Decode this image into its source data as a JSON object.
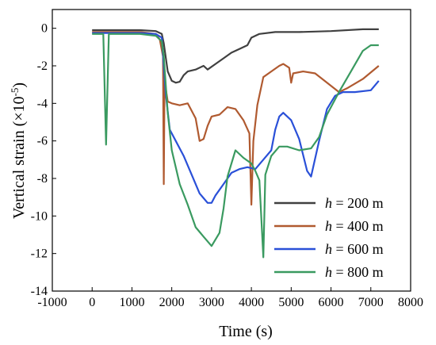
{
  "chart_data": {
    "type": "line",
    "xlabel": "Time (s)",
    "ylabel_main": "Vertical strain (×10",
    "ylabel_exp": "-5",
    "ylabel_close": ")",
    "xlim": [
      -1000,
      8000
    ],
    "ylim": [
      -14,
      1
    ],
    "xticks": [
      -1000,
      0,
      1000,
      2000,
      3000,
      4000,
      5000,
      6000,
      7000,
      8000
    ],
    "yticks": [
      0,
      -2,
      -4,
      -6,
      -8,
      -10,
      -12,
      -14
    ],
    "legend_position": "right",
    "series": [
      {
        "name": "h = 200 m",
        "name_var": "h",
        "name_rest": " = 200 m",
        "color": "#404040",
        "points": [
          [
            0,
            -0.1
          ],
          [
            600,
            -0.1
          ],
          [
            1200,
            -0.1
          ],
          [
            1600,
            -0.15
          ],
          [
            1750,
            -0.3
          ],
          [
            1800,
            -0.8
          ],
          [
            1900,
            -2.3
          ],
          [
            2000,
            -2.8
          ],
          [
            2100,
            -2.9
          ],
          [
            2200,
            -2.85
          ],
          [
            2300,
            -2.5
          ],
          [
            2400,
            -2.3
          ],
          [
            2600,
            -2.2
          ],
          [
            2800,
            -2.0
          ],
          [
            2900,
            -2.2
          ],
          [
            3100,
            -1.9
          ],
          [
            3300,
            -1.6
          ],
          [
            3500,
            -1.3
          ],
          [
            3700,
            -1.1
          ],
          [
            3900,
            -0.9
          ],
          [
            4000,
            -0.5
          ],
          [
            4200,
            -0.3
          ],
          [
            4600,
            -0.2
          ],
          [
            5200,
            -0.2
          ],
          [
            6000,
            -0.15
          ],
          [
            6800,
            -0.05
          ],
          [
            7200,
            -0.05
          ]
        ]
      },
      {
        "name": "h = 400 m",
        "name_var": "h",
        "name_rest": " = 400 m",
        "color": "#b05a30",
        "points": [
          [
            0,
            -0.2
          ],
          [
            600,
            -0.2
          ],
          [
            1200,
            -0.2
          ],
          [
            1600,
            -0.3
          ],
          [
            1700,
            -0.6
          ],
          [
            1780,
            -1.5
          ],
          [
            1800,
            -8.3
          ],
          [
            1820,
            -2.8
          ],
          [
            1900,
            -3.9
          ],
          [
            2000,
            -4.0
          ],
          [
            2200,
            -4.1
          ],
          [
            2400,
            -4.0
          ],
          [
            2500,
            -4.4
          ],
          [
            2600,
            -4.8
          ],
          [
            2700,
            -6.0
          ],
          [
            2800,
            -5.9
          ],
          [
            2900,
            -5.2
          ],
          [
            3000,
            -4.7
          ],
          [
            3200,
            -4.6
          ],
          [
            3400,
            -4.2
          ],
          [
            3600,
            -4.3
          ],
          [
            3800,
            -4.9
          ],
          [
            3950,
            -5.6
          ],
          [
            4000,
            -9.4
          ],
          [
            4050,
            -6.0
          ],
          [
            4150,
            -4.1
          ],
          [
            4300,
            -2.6
          ],
          [
            4500,
            -2.3
          ],
          [
            4700,
            -2.0
          ],
          [
            4800,
            -1.9
          ],
          [
            4950,
            -2.1
          ],
          [
            5000,
            -2.9
          ],
          [
            5050,
            -2.4
          ],
          [
            5300,
            -2.3
          ],
          [
            5600,
            -2.4
          ],
          [
            5900,
            -2.9
          ],
          [
            6200,
            -3.4
          ],
          [
            6400,
            -3.2
          ],
          [
            6800,
            -2.7
          ],
          [
            7200,
            -2.0
          ]
        ]
      },
      {
        "name": "h = 600 m",
        "name_var": "h",
        "name_rest": " = 600 m",
        "color": "#2a50d8",
        "points": [
          [
            0,
            -0.25
          ],
          [
            600,
            -0.25
          ],
          [
            1200,
            -0.25
          ],
          [
            1600,
            -0.3
          ],
          [
            1750,
            -0.5
          ],
          [
            1850,
            -3.5
          ],
          [
            1950,
            -5.4
          ],
          [
            2100,
            -6.0
          ],
          [
            2300,
            -6.8
          ],
          [
            2500,
            -7.8
          ],
          [
            2700,
            -8.8
          ],
          [
            2900,
            -9.3
          ],
          [
            3000,
            -9.3
          ],
          [
            3100,
            -8.9
          ],
          [
            3300,
            -8.3
          ],
          [
            3500,
            -7.7
          ],
          [
            3700,
            -7.5
          ],
          [
            3900,
            -7.4
          ],
          [
            4100,
            -7.5
          ],
          [
            4300,
            -7.0
          ],
          [
            4500,
            -6.5
          ],
          [
            4600,
            -5.4
          ],
          [
            4700,
            -4.7
          ],
          [
            4800,
            -4.5
          ],
          [
            5000,
            -4.9
          ],
          [
            5200,
            -5.9
          ],
          [
            5400,
            -7.6
          ],
          [
            5500,
            -7.9
          ],
          [
            5700,
            -6.0
          ],
          [
            5900,
            -4.3
          ],
          [
            6100,
            -3.6
          ],
          [
            6300,
            -3.4
          ],
          [
            6600,
            -3.4
          ],
          [
            7000,
            -3.3
          ],
          [
            7200,
            -2.8
          ]
        ]
      },
      {
        "name": "h = 800 m",
        "name_var": "h",
        "name_rest": " = 800 m",
        "color": "#3a9a60",
        "points": [
          [
            0,
            -0.3
          ],
          [
            280,
            -0.3
          ],
          [
            350,
            -6.2
          ],
          [
            420,
            -0.3
          ],
          [
            600,
            -0.3
          ],
          [
            1200,
            -0.3
          ],
          [
            1600,
            -0.4
          ],
          [
            1750,
            -0.7
          ],
          [
            1800,
            -1.5
          ],
          [
            1900,
            -4.5
          ],
          [
            2000,
            -6.5
          ],
          [
            2200,
            -8.3
          ],
          [
            2400,
            -9.4
          ],
          [
            2600,
            -10.6
          ],
          [
            2800,
            -11.1
          ],
          [
            3000,
            -11.6
          ],
          [
            3200,
            -10.9
          ],
          [
            3300,
            -9.6
          ],
          [
            3400,
            -7.9
          ],
          [
            3600,
            -6.5
          ],
          [
            3800,
            -6.9
          ],
          [
            4000,
            -7.2
          ],
          [
            4100,
            -7.6
          ],
          [
            4200,
            -8.1
          ],
          [
            4300,
            -12.2
          ],
          [
            4350,
            -7.8
          ],
          [
            4500,
            -6.8
          ],
          [
            4700,
            -6.3
          ],
          [
            4900,
            -6.3
          ],
          [
            5200,
            -6.5
          ],
          [
            5500,
            -6.4
          ],
          [
            5700,
            -5.8
          ],
          [
            5900,
            -4.6
          ],
          [
            6200,
            -3.4
          ],
          [
            6500,
            -2.3
          ],
          [
            6800,
            -1.2
          ],
          [
            7000,
            -0.9
          ],
          [
            7200,
            -0.9
          ]
        ]
      }
    ]
  }
}
